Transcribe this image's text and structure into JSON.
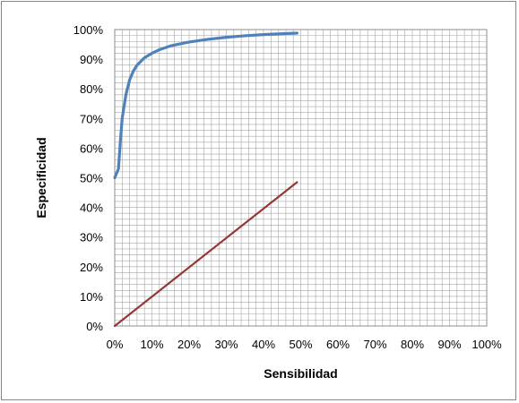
{
  "chart_data": {
    "type": "line",
    "xlabel": "Sensibilidad",
    "ylabel": "Especificidad",
    "xlim": [
      0,
      100
    ],
    "ylim": [
      0,
      100
    ],
    "x_ticks": [
      "0%",
      "10%",
      "20%",
      "30%",
      "40%",
      "50%",
      "60%",
      "70%",
      "80%",
      "90%",
      "100%"
    ],
    "y_ticks": [
      "0%",
      "10%",
      "20%",
      "30%",
      "40%",
      "50%",
      "60%",
      "70%",
      "80%",
      "90%",
      "100%"
    ],
    "grid": true,
    "minor_grid_step": 2,
    "legend": "none",
    "series": [
      {
        "color": "#4F81BD",
        "x": [
          0,
          1,
          1.5,
          2,
          3,
          4,
          5,
          6,
          8,
          10,
          12,
          15,
          20,
          25,
          30,
          35,
          40,
          45,
          49
        ],
        "y": [
          50,
          53,
          62,
          70,
          78,
          83,
          86,
          88,
          90.5,
          92,
          93.2,
          94.5,
          95.8,
          96.7,
          97.4,
          97.9,
          98.3,
          98.6,
          98.8
        ]
      },
      {
        "color": "#953735",
        "x": [
          0,
          49
        ],
        "y": [
          0,
          48.5
        ]
      }
    ]
  }
}
